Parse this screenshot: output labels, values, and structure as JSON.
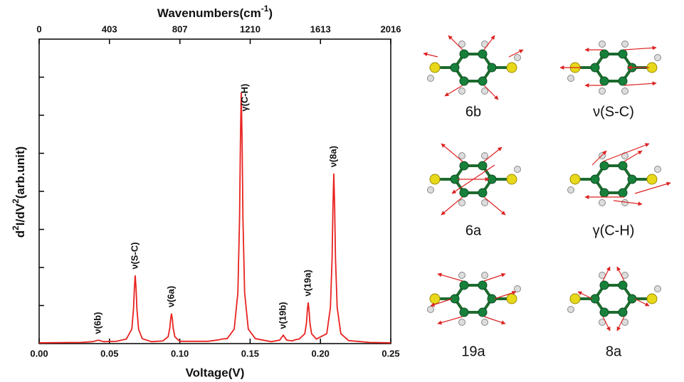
{
  "chart_data": {
    "type": "line",
    "x_label": "Voltage(V)",
    "x2_label": [
      "Wavenumbers(cm",
      "-1",
      ")"
    ],
    "y_label": [
      "d",
      "2",
      "I/dV",
      "2",
      "(arb.unit)"
    ],
    "xlim": [
      0,
      0.25
    ],
    "xticks": [
      {
        "value": 0,
        "label": "0.00"
      },
      0.05,
      {
        "value": 0.1,
        "label": "0.10"
      },
      0.15,
      {
        "value": 0.2,
        "label": "0.20"
      },
      0.25
    ],
    "x2lim": [
      0,
      2016
    ],
    "x2ticks": [
      0,
      403,
      807,
      1210,
      1613,
      2016
    ],
    "ylim": [
      0,
      8
    ],
    "yticks": [
      1,
      2,
      3,
      4,
      5,
      6,
      7
    ],
    "ytick_labels": false,
    "color": "#e8221f",
    "x": [
      0,
      0.03,
      0.038,
      0.042,
      0.046,
      0.055,
      0.062,
      0.0659,
      0.0671,
      0.0677,
      0.0683,
      0.0689,
      0.0695,
      0.0707,
      0.0733,
      0.08,
      0.088,
      0.0917,
      0.0929,
      0.0935,
      0.0941,
      0.0947,
      0.0953,
      0.0965,
      0.1,
      0.12,
      0.128,
      0.13,
      0.1337,
      0.1387,
      0.1413,
      0.1425,
      0.1431,
      0.1437,
      0.1443,
      0.1449,
      0.1461,
      0.1487,
      0.1537,
      0.165,
      0.171,
      0.1736,
      0.176,
      0.18,
      0.182,
      0.185,
      0.1889,
      0.1901,
      0.1907,
      0.1913,
      0.1919,
      0.1925,
      0.1937,
      0.1971,
      0.2045,
      0.2071,
      0.2083,
      0.2089,
      0.2095,
      0.2101,
      0.2107,
      0.2119,
      0.2145,
      0.22,
      0.235,
      0.25
    ],
    "values": [
      0.02,
      0.03,
      0.05,
      0.09,
      0.05,
      0.06,
      0.12,
      0.38,
      0.92,
      1.45,
      1.79,
      1.45,
      0.92,
      0.38,
      0.13,
      0.05,
      0.07,
      0.18,
      0.41,
      0.64,
      0.79,
      0.64,
      0.41,
      0.18,
      0.06,
      0.06,
      0.1,
      0.12,
      0.13,
      0.38,
      1.34,
      3.3,
      5.3,
      6.6,
      5.3,
      3.3,
      1.34,
      0.38,
      0.13,
      0.05,
      0.09,
      0.22,
      0.09,
      0.07,
      0.1,
      0.12,
      0.26,
      0.55,
      0.88,
      1.08,
      0.88,
      0.55,
      0.26,
      0.12,
      0.26,
      0.95,
      2.25,
      3.6,
      4.47,
      3.6,
      2.25,
      0.95,
      0.26,
      0.08,
      0.03,
      0.02
    ],
    "annotations": [
      {
        "text": "ν(6b)",
        "x": 0.042,
        "y": 0.25
      },
      {
        "text": "ν(S-C)",
        "x": 0.0683,
        "y": 1.95
      },
      {
        "text": "ν(6a)",
        "x": 0.0941,
        "y": 0.95
      },
      {
        "text": "γ(C-H)",
        "x": 0.1465,
        "y": 6.1
      },
      {
        "text": "ν(19b)",
        "x": 0.1736,
        "y": 0.38
      },
      {
        "text": "ν(19a)",
        "x": 0.1913,
        "y": 1.24
      },
      {
        "text": "ν(8a)",
        "x": 0.2095,
        "y": 4.63
      }
    ]
  },
  "molecule_labels": [
    "6b",
    "ν(S-C)",
    "6a",
    "γ(C-H)",
    "19a",
    "8a"
  ]
}
